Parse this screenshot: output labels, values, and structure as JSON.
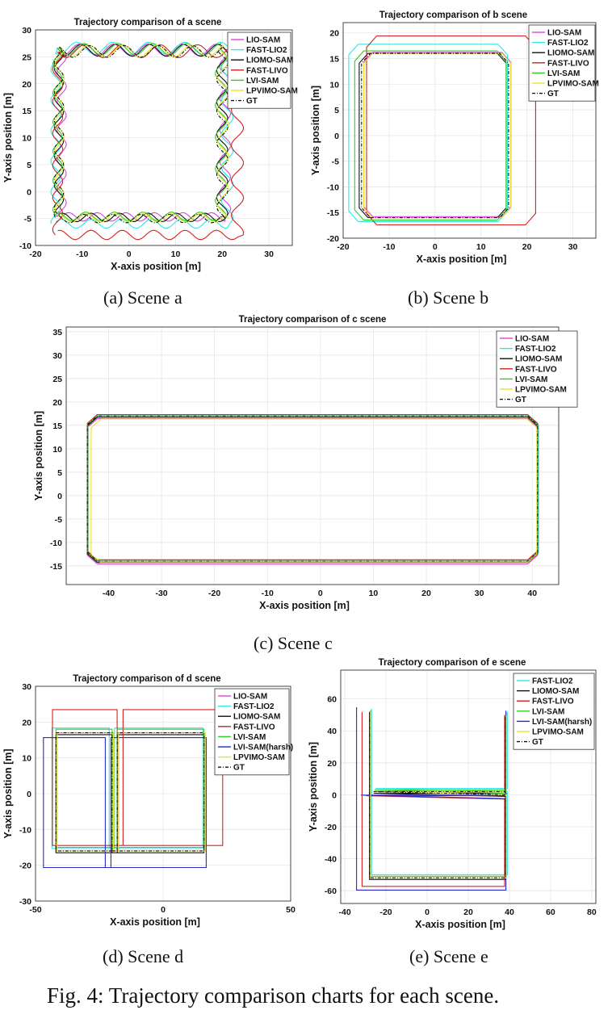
{
  "figure": {
    "caption": "Fig. 4: Trajectory comparison charts for each scene.",
    "subcaptions": [
      "(a) Scene a",
      "(b) Scene b",
      "(c) Scene c",
      "(d) Scene d",
      "(e) Scene e"
    ]
  },
  "colors": {
    "LIO-SAM": "#e040e0",
    "FAST-LIO2": "#2ee6e6",
    "LIOMO-SAM": "#111111",
    "FAST-LIVO": "#d62020",
    "LVI-SAM": "#33cc22",
    "LVI-SAM(harsh)": "#2a2ac8",
    "LPVIMO-SAM": "#e6e620",
    "GT": "#111111"
  },
  "chart_data": [
    {
      "id": "a",
      "type": "line",
      "title": "Trajectory comparison of a scene",
      "xlabel": "X-axis position [m]",
      "ylabel": "Y-axis position [m]",
      "xlim": [
        -20,
        35
      ],
      "ylim": [
        -10,
        30
      ],
      "xticks": [
        -20,
        -10,
        0,
        10,
        20,
        30
      ],
      "yticks": [
        -10,
        -5,
        0,
        5,
        10,
        15,
        20,
        25,
        30
      ],
      "grid": true,
      "legend_position": "top-right",
      "legend": [
        "LIO-SAM",
        "FAST-LIO2",
        "LIOMO-SAM",
        "FAST-LIVO",
        "LVI-SAM",
        "LPVIMO-SAM",
        "GT"
      ],
      "shape": "wavy-loop",
      "gt_corners": [
        [
          -15,
          -5
        ],
        [
          20,
          -5
        ],
        [
          20,
          26
        ],
        [
          -15,
          26
        ]
      ],
      "series": [
        {
          "name": "LIO-SAM",
          "offset": [
            0.6,
            0.3
          ],
          "scale": 1.0
        },
        {
          "name": "FAST-LIO2",
          "offset": [
            0.2,
            -0.2
          ],
          "scale": 1.05
        },
        {
          "name": "LIOMO-SAM",
          "offset": [
            0.0,
            0.2
          ],
          "scale": 1.0
        },
        {
          "name": "FAST-LIVO",
          "offset": [
            1.5,
            -1.5
          ],
          "scale": 1.1
        },
        {
          "name": "LVI-SAM",
          "offset": [
            -0.3,
            0.4
          ],
          "scale": 1.0
        },
        {
          "name": "LPVIMO-SAM",
          "offset": [
            0.2,
            0.1
          ],
          "scale": 1.0
        },
        {
          "name": "GT",
          "offset": [
            0,
            0
          ],
          "scale": 1.0
        }
      ]
    },
    {
      "id": "b",
      "type": "line",
      "title": "Trajectory comparison of b scene",
      "xlabel": "X-axis position [m]",
      "ylabel": "Y-axis position [m]",
      "xlim": [
        -20,
        35
      ],
      "ylim": [
        -20,
        22
      ],
      "xticks": [
        -20,
        -10,
        0,
        10,
        20,
        30
      ],
      "yticks": [
        -20,
        -15,
        -10,
        -5,
        0,
        5,
        10,
        15,
        20
      ],
      "grid": true,
      "legend_position": "top-right",
      "legend": [
        "LIO-SAM",
        "FAST-LIO2",
        "LIOMO-SAM",
        "FAST-LIVO",
        "LVI-SAM",
        "LPVIMO-SAM",
        "GT"
      ],
      "shape": "rounded-rect",
      "gt_corners": [
        [
          -16,
          -16
        ],
        [
          16,
          -16
        ],
        [
          16,
          16
        ],
        [
          -16,
          16
        ]
      ],
      "series": [
        {
          "name": "LIO-SAM",
          "offset": [
            0.5,
            0.2
          ],
          "scale": 1.0
        },
        {
          "name": "FAST-LIO2",
          "offset": [
            -1.5,
            0.5
          ],
          "scale": 1.08
        },
        {
          "name": "LIOMO-SAM",
          "offset": [
            -0.5,
            0.0
          ],
          "scale": 1.0
        },
        {
          "name": "FAST-LIVO",
          "offset": [
            3.5,
            1.0
          ],
          "scale": 1.15
        },
        {
          "name": "LVI-SAM",
          "offset": [
            -1.0,
            0.0
          ],
          "scale": 1.03
        },
        {
          "name": "LPVIMO-SAM",
          "offset": [
            0.5,
            0.0
          ],
          "scale": 1.0
        },
        {
          "name": "GT",
          "offset": [
            0,
            0
          ],
          "scale": 1.0
        }
      ]
    },
    {
      "id": "c",
      "type": "line",
      "title": "Trajectory comparison of c scene",
      "xlabel": "X-axis position [m]",
      "ylabel": "Y-axis position [m]",
      "xlim": [
        -48,
        45
      ],
      "ylim": [
        -19,
        36
      ],
      "xticks": [
        -40,
        -30,
        -20,
        -10,
        0,
        10,
        20,
        30,
        40
      ],
      "yticks": [
        -15,
        -10,
        -5,
        0,
        5,
        10,
        15,
        20,
        25,
        30,
        35
      ],
      "grid": true,
      "legend_position": "top-right",
      "legend": [
        "LIO-SAM",
        "FAST-LIO2",
        "LIOMO-SAM",
        "FAST-LIVO",
        "LVI-SAM",
        "LPVIMO-SAM",
        "GT"
      ],
      "shape": "rounded-rect",
      "gt_corners": [
        [
          -44,
          -14
        ],
        [
          41,
          -14
        ],
        [
          41,
          17
        ],
        [
          -44,
          17
        ]
      ],
      "series": [
        {
          "name": "LIO-SAM",
          "offset": [
            0.0,
            -0.6
          ],
          "scale": 1.0
        },
        {
          "name": "FAST-LIO2",
          "offset": [
            0.2,
            0.0
          ],
          "scale": 1.0
        },
        {
          "name": "LIOMO-SAM",
          "offset": [
            0.0,
            -0.3
          ],
          "scale": 1.0
        },
        {
          "name": "FAST-LIVO",
          "offset": [
            0.0,
            0.3
          ],
          "scale": 1.0
        },
        {
          "name": "LVI-SAM",
          "offset": [
            0.0,
            0.0
          ],
          "scale": 1.0
        },
        {
          "name": "LPVIMO-SAM",
          "offset": [
            0.3,
            -0.5
          ],
          "scale": 0.99
        },
        {
          "name": "GT",
          "offset": [
            0,
            0
          ],
          "scale": 1.0
        }
      ]
    },
    {
      "id": "d",
      "type": "line",
      "title": "Trajectory comparison of d scene",
      "xlabel": "X-axis position [m]",
      "ylabel": "Y-axis position [m]",
      "xlim": [
        -50,
        50
      ],
      "ylim": [
        -30,
        30
      ],
      "xticks": [
        -50,
        0,
        50
      ],
      "yticks": [
        -30,
        -20,
        -10,
        0,
        10,
        20,
        30
      ],
      "grid": true,
      "legend_position": "top-right",
      "legend": [
        "LIO-SAM",
        "FAST-LIO2",
        "LIOMO-SAM",
        "FAST-LIVO",
        "LVI-SAM",
        "LVI-SAM(harsh)",
        "LPVIMO-SAM",
        "GT"
      ],
      "shape": "figure-eight",
      "gt_corners": [
        [
          -42,
          -16
        ],
        [
          16,
          -16
        ],
        [
          16,
          17
        ],
        [
          -42,
          17
        ]
      ],
      "series": [
        {
          "name": "LIO-SAM",
          "offset": [
            0.5,
            0.0
          ],
          "scale": 1.0
        },
        {
          "name": "FAST-LIO2",
          "offset": [
            -1.0,
            1.0
          ],
          "scale": 1.02
        },
        {
          "name": "LIOMO-SAM",
          "offset": [
            0.0,
            -0.5
          ],
          "scale": 1.0
        },
        {
          "name": "FAST-LIVO",
          "offset": [
            3.0,
            4.0
          ],
          "scale": 1.15
        },
        {
          "name": "LVI-SAM",
          "offset": [
            0.0,
            1.0
          ],
          "scale": 1.0
        },
        {
          "name": "LVI-SAM(harsh)",
          "offset": [
            -2.0,
            -3.0
          ],
          "scale": 1.1
        },
        {
          "name": "LPVIMO-SAM",
          "offset": [
            0.5,
            0.0
          ],
          "scale": 1.0
        },
        {
          "name": "GT",
          "offset": [
            0,
            0
          ],
          "scale": 1.0
        }
      ]
    },
    {
      "id": "e",
      "type": "line",
      "title": "Trajectory comparison of e scene",
      "xlabel": "X-axis position [m]",
      "ylabel": "Y-axis position [m]",
      "xlim": [
        -42,
        82
      ],
      "ylim": [
        -68,
        78
      ],
      "xticks": [
        -40,
        -20,
        0,
        20,
        40,
        60,
        80
      ],
      "yticks": [
        -60,
        -40,
        -20,
        0,
        20,
        40,
        60
      ],
      "grid": true,
      "legend_position": "top-right",
      "legend": [
        "FAST-LIO2",
        "LIOMO-SAM",
        "FAST-LIVO",
        "LVI-SAM",
        "LVI-SAM(harsh)",
        "LPVIMO-SAM",
        "GT"
      ],
      "shape": "e-path",
      "gt_corners": [
        [
          -28,
          -52
        ],
        [
          38,
          -52
        ],
        [
          38,
          0
        ],
        [
          -28,
          0
        ]
      ],
      "series": [
        {
          "name": "FAST-LIO2",
          "offset": [
            1.0,
            2.0
          ],
          "scale": 1.0
        },
        {
          "name": "LIOMO-SAM",
          "offset": [
            0.0,
            -1.0
          ],
          "scale": 1.0
        },
        {
          "name": "FAST-LIVO",
          "offset": [
            -2.0,
            -4.0
          ],
          "scale": 1.05
        },
        {
          "name": "LVI-SAM",
          "offset": [
            0.5,
            1.0
          ],
          "scale": 1.0
        },
        {
          "name": "LVI-SAM(harsh)",
          "offset": [
            -3.0,
            -5.0
          ],
          "scale": 1.1
        },
        {
          "name": "LPVIMO-SAM",
          "offset": [
            0.5,
            0.0
          ],
          "scale": 1.0
        },
        {
          "name": "GT",
          "offset": [
            0,
            0
          ],
          "scale": 1.0
        }
      ]
    }
  ]
}
